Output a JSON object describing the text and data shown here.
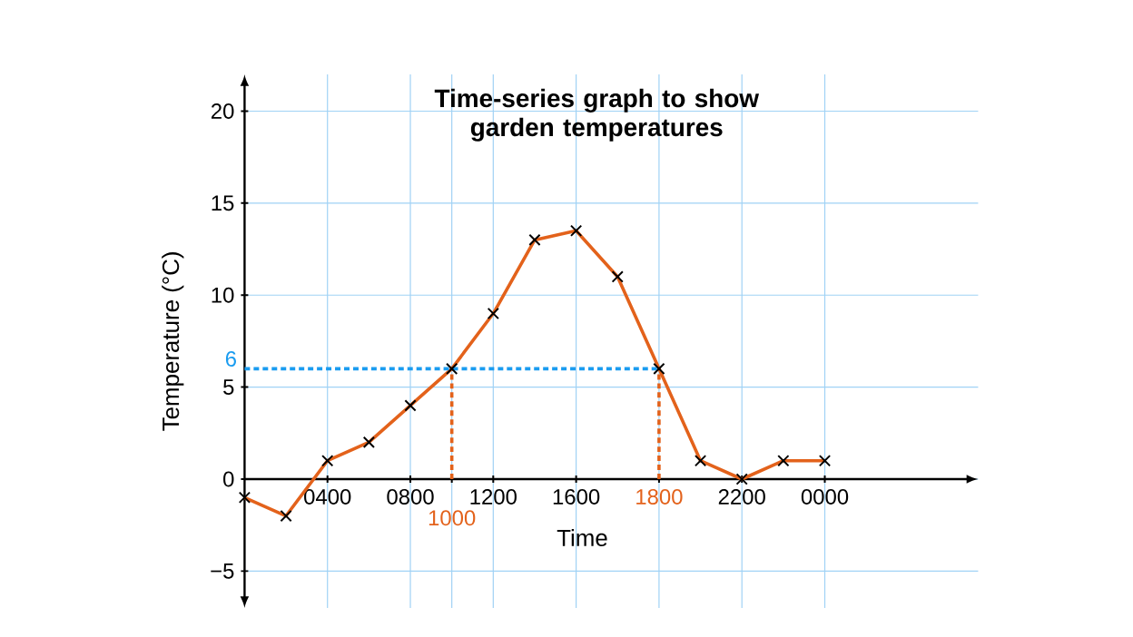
{
  "chart_data": {
    "type": "line",
    "title": "Time-series graph to show garden temperatures",
    "xlabel": "Time",
    "ylabel": "Temperature (°C)",
    "categories": [
      null,
      null,
      "0400",
      null,
      "0800",
      "1000",
      "1200",
      null,
      "1600",
      null,
      "1800",
      null,
      "2200",
      null,
      "0000"
    ],
    "series": [
      {
        "color": "#e3621b",
        "values": [
          -1,
          -2,
          1,
          2,
          4,
          6,
          9,
          13,
          13.5,
          11,
          6,
          1,
          0,
          1,
          1
        ]
      }
    ],
    "ylim": [
      -7,
      22
    ],
    "yticks": [
      {
        "value": -5,
        "label": "−5"
      },
      0,
      5,
      10,
      15,
      20
    ],
    "ref_lines": [
      {
        "axis": "x",
        "value": "1000",
        "color": "#e3621b",
        "line_style": "dashed"
      },
      {
        "axis": "x",
        "value": "1800",
        "color": "#e3621b",
        "line_style": "dashed"
      },
      {
        "axis": "y",
        "value": 6,
        "label": "6",
        "color": "#1a9cf0",
        "line_style": "dashed"
      }
    ],
    "grid": true,
    "marker": "cross",
    "line_style": "solid"
  }
}
